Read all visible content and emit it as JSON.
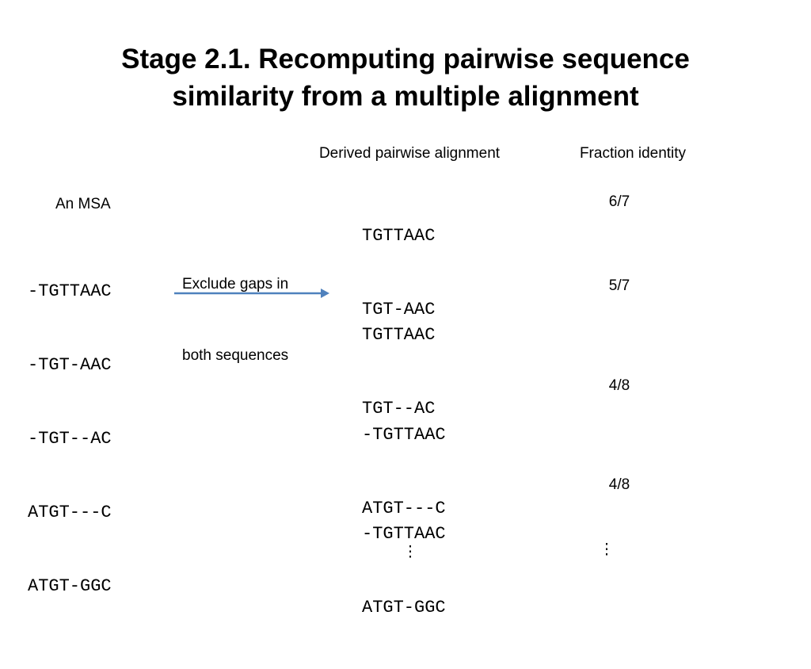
{
  "title": [
    "Stage 2.1. Recomputing pairwise sequence",
    "similarity from a multiple alignment"
  ],
  "headers": [
    "Derived pairwise alignment",
    "Fraction identity"
  ],
  "msa_label": "An MSA",
  "msa": [
    "-TGTTAAC",
    "-TGT-AAC",
    "-TGT--AC",
    "ATGT---C",
    "ATGT-GGC"
  ],
  "arrow_label": [
    "Exclude gaps in",
    "both sequences"
  ],
  "pairs": [
    {
      "sequences": [
        "TGTTAAC",
        "TGT-AAC"
      ],
      "identity": "6/7"
    },
    {
      "sequences": [
        "TGTTAAC",
        "TGT--AC"
      ],
      "identity": "5/7"
    },
    {
      "sequences": [
        "-TGTTAAC",
        "ATGT---C"
      ],
      "identity": "4/8"
    },
    {
      "sequences": [
        "-TGTTAAC",
        "ATGT-GGC"
      ],
      "identity": "4/8"
    }
  ],
  "continuation": [
    "⋮",
    "⋮"
  ]
}
